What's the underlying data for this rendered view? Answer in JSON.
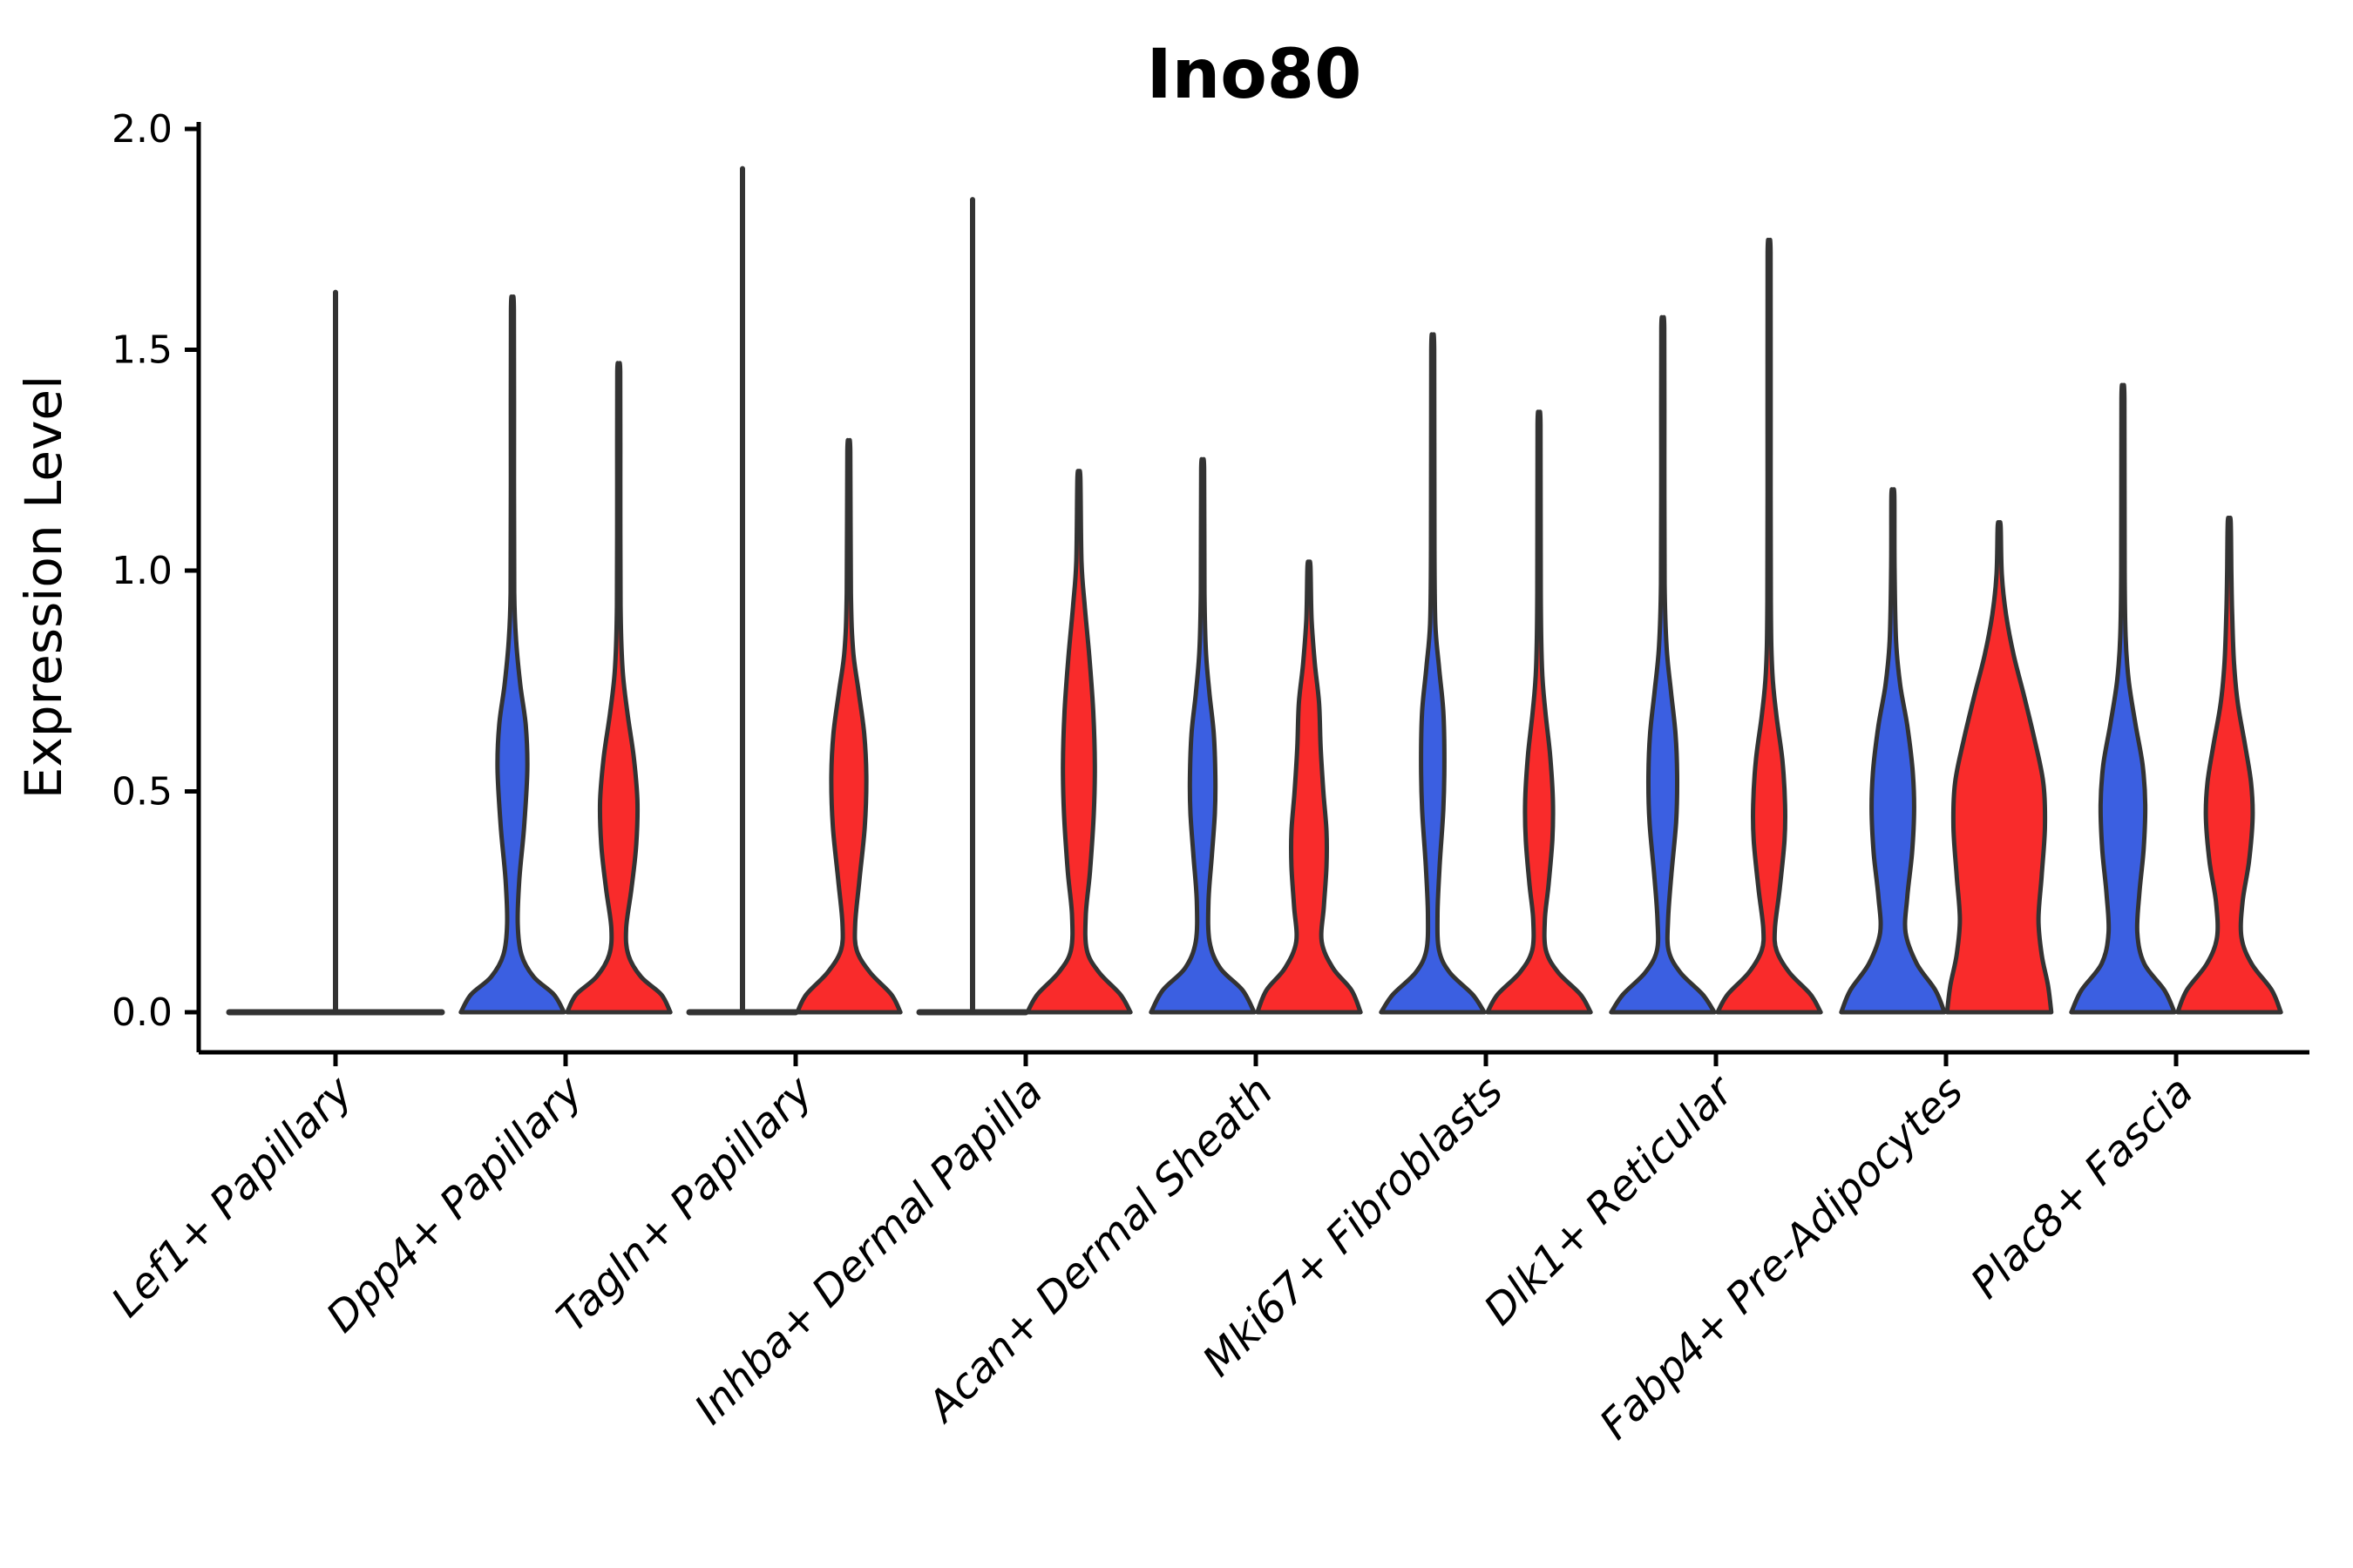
{
  "title": "Ino80",
  "chart_data": {
    "type": "violin",
    "title": "Ino80",
    "ylabel": "Expression Level",
    "xlabel": "",
    "ylim": [
      0.0,
      2.0
    ],
    "yticks": [
      0.0,
      0.5,
      1.0,
      1.5,
      2.0
    ],
    "ytick_labels": [
      "0.0",
      "0.5",
      "1.0",
      "1.5",
      "2.0"
    ],
    "grid": false,
    "legend_position": "none",
    "x_label_angle_deg": 45,
    "split_colors": {
      "blue": "#3B5FE1",
      "red": "#F92B2B",
      "none": "none"
    },
    "outline_color": "#333333",
    "categories": [
      "Lef1+ Papillary",
      "Dpp4+ Papillary",
      "Tagln+ Papillary",
      "Inhba+ Dermal Papilla",
      "Acan+ Dermal Sheath",
      "Mki67+ Fibroblasts",
      "Dlk1+ Reticular",
      "Fabp4+ Pre-Adipocytes",
      "Plac8+ Fascia"
    ],
    "groups": [
      {
        "category": "Lef1+ Papillary",
        "violins": [
          {
            "split": "none",
            "flat": true,
            "wide": true,
            "max": 1.63
          }
        ]
      },
      {
        "category": "Dpp4+ Papillary",
        "violins": [
          {
            "split": "blue",
            "flat": false,
            "max": 1.59,
            "profile": [
              [
                0,
                0.97
              ],
              [
                0.04,
                0.78
              ],
              [
                0.08,
                0.4
              ],
              [
                0.13,
                0.17
              ],
              [
                0.2,
                0.1
              ],
              [
                0.3,
                0.13
              ],
              [
                0.42,
                0.22
              ],
              [
                0.55,
                0.28
              ],
              [
                0.65,
                0.25
              ],
              [
                0.74,
                0.15
              ],
              [
                0.84,
                0.07
              ],
              [
                0.95,
                0.035
              ],
              [
                1.2,
                0.03
              ],
              [
                1.59,
                0.028
              ]
            ]
          },
          {
            "split": "red",
            "flat": false,
            "max": 1.45,
            "profile": [
              [
                0,
                0.97
              ],
              [
                0.04,
                0.8
              ],
              [
                0.08,
                0.42
              ],
              [
                0.13,
                0.18
              ],
              [
                0.19,
                0.14
              ],
              [
                0.28,
                0.24
              ],
              [
                0.38,
                0.33
              ],
              [
                0.48,
                0.35
              ],
              [
                0.58,
                0.28
              ],
              [
                0.68,
                0.16
              ],
              [
                0.78,
                0.07
              ],
              [
                0.92,
                0.035
              ],
              [
                1.2,
                0.03
              ],
              [
                1.45,
                0.028
              ]
            ]
          }
        ]
      },
      {
        "category": "Tagln+ Papillary",
        "violins": [
          {
            "split": "blue",
            "flat": true,
            "wide": false,
            "max": 1.91
          },
          {
            "split": "red",
            "flat": false,
            "max": 1.27,
            "profile": [
              [
                0,
                0.97
              ],
              [
                0.04,
                0.8
              ],
              [
                0.09,
                0.4
              ],
              [
                0.14,
                0.15
              ],
              [
                0.2,
                0.12
              ],
              [
                0.3,
                0.2
              ],
              [
                0.42,
                0.3
              ],
              [
                0.53,
                0.33
              ],
              [
                0.63,
                0.29
              ],
              [
                0.73,
                0.18
              ],
              [
                0.82,
                0.08
              ],
              [
                0.95,
                0.04
              ],
              [
                1.27,
                0.028
              ]
            ]
          }
        ]
      },
      {
        "category": "Inhba+ Dermal Papilla",
        "violins": [
          {
            "split": "blue",
            "flat": true,
            "wide": false,
            "max": 1.84
          },
          {
            "split": "red",
            "flat": false,
            "max": 1.21,
            "profile": [
              [
                0,
                0.97
              ],
              [
                0.04,
                0.78
              ],
              [
                0.09,
                0.38
              ],
              [
                0.14,
                0.15
              ],
              [
                0.22,
                0.13
              ],
              [
                0.32,
                0.21
              ],
              [
                0.45,
                0.28
              ],
              [
                0.56,
                0.3
              ],
              [
                0.68,
                0.27
              ],
              [
                0.8,
                0.2
              ],
              [
                0.92,
                0.11
              ],
              [
                1.02,
                0.05
              ],
              [
                1.21,
                0.028
              ]
            ]
          }
        ]
      },
      {
        "category": "Acan+ Dermal Sheath",
        "violins": [
          {
            "split": "blue",
            "flat": false,
            "max": 1.23,
            "profile": [
              [
                0,
                0.97
              ],
              [
                0.05,
                0.75
              ],
              [
                0.1,
                0.33
              ],
              [
                0.16,
                0.13
              ],
              [
                0.25,
                0.11
              ],
              [
                0.35,
                0.17
              ],
              [
                0.45,
                0.23
              ],
              [
                0.53,
                0.24
              ],
              [
                0.63,
                0.21
              ],
              [
                0.72,
                0.13
              ],
              [
                0.82,
                0.06
              ],
              [
                0.95,
                0.035
              ],
              [
                1.23,
                0.028
              ]
            ]
          },
          {
            "split": "red",
            "flat": false,
            "max": 1.01,
            "profile": [
              [
                0,
                0.97
              ],
              [
                0.05,
                0.8
              ],
              [
                0.1,
                0.45
              ],
              [
                0.16,
                0.24
              ],
              [
                0.24,
                0.28
              ],
              [
                0.33,
                0.33
              ],
              [
                0.41,
                0.33
              ],
              [
                0.5,
                0.27
              ],
              [
                0.6,
                0.22
              ],
              [
                0.7,
                0.19
              ],
              [
                0.79,
                0.11
              ],
              [
                0.89,
                0.05
              ],
              [
                1.01,
                0.028
              ]
            ]
          }
        ]
      },
      {
        "category": "Mki67+ Fibroblasts",
        "violins": [
          {
            "split": "blue",
            "flat": false,
            "max": 1.5,
            "profile": [
              [
                0,
                0.97
              ],
              [
                0.04,
                0.75
              ],
              [
                0.09,
                0.32
              ],
              [
                0.14,
                0.12
              ],
              [
                0.22,
                0.09
              ],
              [
                0.33,
                0.13
              ],
              [
                0.46,
                0.2
              ],
              [
                0.57,
                0.22
              ],
              [
                0.68,
                0.2
              ],
              [
                0.78,
                0.12
              ],
              [
                0.88,
                0.05
              ],
              [
                1.05,
                0.032
              ],
              [
                1.5,
                0.028
              ]
            ]
          },
          {
            "split": "red",
            "flat": false,
            "max": 1.33,
            "profile": [
              [
                0,
                0.97
              ],
              [
                0.04,
                0.78
              ],
              [
                0.09,
                0.36
              ],
              [
                0.14,
                0.13
              ],
              [
                0.21,
                0.11
              ],
              [
                0.29,
                0.18
              ],
              [
                0.39,
                0.25
              ],
              [
                0.48,
                0.26
              ],
              [
                0.58,
                0.21
              ],
              [
                0.68,
                0.12
              ],
              [
                0.78,
                0.055
              ],
              [
                0.95,
                0.032
              ],
              [
                1.33,
                0.028
              ]
            ]
          }
        ]
      },
      {
        "category": "Dlk1+ Reticular",
        "violins": [
          {
            "split": "blue",
            "flat": false,
            "max": 1.55,
            "profile": [
              [
                0,
                0.97
              ],
              [
                0.04,
                0.75
              ],
              [
                0.09,
                0.33
              ],
              [
                0.14,
                0.11
              ],
              [
                0.21,
                0.1
              ],
              [
                0.31,
                0.16
              ],
              [
                0.43,
                0.25
              ],
              [
                0.53,
                0.27
              ],
              [
                0.63,
                0.24
              ],
              [
                0.73,
                0.15
              ],
              [
                0.83,
                0.07
              ],
              [
                0.97,
                0.035
              ],
              [
                1.25,
                0.03
              ],
              [
                1.55,
                0.028
              ]
            ]
          },
          {
            "split": "red",
            "flat": false,
            "max": 1.72,
            "profile": [
              [
                0,
                0.97
              ],
              [
                0.04,
                0.78
              ],
              [
                0.09,
                0.38
              ],
              [
                0.14,
                0.14
              ],
              [
                0.19,
                0.11
              ],
              [
                0.28,
                0.2
              ],
              [
                0.39,
                0.29
              ],
              [
                0.47,
                0.3
              ],
              [
                0.57,
                0.25
              ],
              [
                0.67,
                0.14
              ],
              [
                0.77,
                0.06
              ],
              [
                0.93,
                0.032
              ],
              [
                1.35,
                0.029
              ],
              [
                1.72,
                0.028
              ]
            ]
          }
        ]
      },
      {
        "category": "Fabp4+ Pre-Adipocytes",
        "violins": [
          {
            "split": "blue",
            "flat": false,
            "max": 1.17,
            "profile": [
              [
                0,
                0.97
              ],
              [
                0.05,
                0.8
              ],
              [
                0.11,
                0.45
              ],
              [
                0.18,
                0.24
              ],
              [
                0.26,
                0.27
              ],
              [
                0.36,
                0.36
              ],
              [
                0.46,
                0.4
              ],
              [
                0.55,
                0.37
              ],
              [
                0.65,
                0.27
              ],
              [
                0.74,
                0.14
              ],
              [
                0.84,
                0.06
              ],
              [
                1.0,
                0.032
              ],
              [
                1.17,
                0.028
              ]
            ]
          },
          {
            "split": "red",
            "flat": false,
            "max": 1.1,
            "profile": [
              [
                0,
                0.98
              ],
              [
                0.06,
                0.92
              ],
              [
                0.13,
                0.8
              ],
              [
                0.21,
                0.74
              ],
              [
                0.31,
                0.8
              ],
              [
                0.42,
                0.86
              ],
              [
                0.52,
                0.83
              ],
              [
                0.62,
                0.66
              ],
              [
                0.72,
                0.46
              ],
              [
                0.81,
                0.27
              ],
              [
                0.9,
                0.13
              ],
              [
                0.99,
                0.05
              ],
              [
                1.1,
                0.028
              ]
            ]
          }
        ]
      },
      {
        "category": "Plac8+ Fascia",
        "violins": [
          {
            "split": "blue",
            "flat": false,
            "max": 1.39,
            "profile": [
              [
                0,
                0.97
              ],
              [
                0.05,
                0.78
              ],
              [
                0.11,
                0.4
              ],
              [
                0.18,
                0.27
              ],
              [
                0.27,
                0.31
              ],
              [
                0.37,
                0.39
              ],
              [
                0.47,
                0.42
              ],
              [
                0.56,
                0.37
              ],
              [
                0.65,
                0.24
              ],
              [
                0.75,
                0.11
              ],
              [
                0.85,
                0.05
              ],
              [
                1.0,
                0.032
              ],
              [
                1.39,
                0.028
              ]
            ]
          },
          {
            "split": "red",
            "flat": false,
            "max": 1.11,
            "profile": [
              [
                0,
                0.97
              ],
              [
                0.05,
                0.8
              ],
              [
                0.11,
                0.42
              ],
              [
                0.17,
                0.23
              ],
              [
                0.25,
                0.25
              ],
              [
                0.34,
                0.37
              ],
              [
                0.44,
                0.44
              ],
              [
                0.52,
                0.41
              ],
              [
                0.61,
                0.29
              ],
              [
                0.7,
                0.16
              ],
              [
                0.79,
                0.09
              ],
              [
                0.9,
                0.055
              ],
              [
                1.0,
                0.04
              ],
              [
                1.11,
                0.028
              ]
            ]
          }
        ]
      }
    ]
  }
}
